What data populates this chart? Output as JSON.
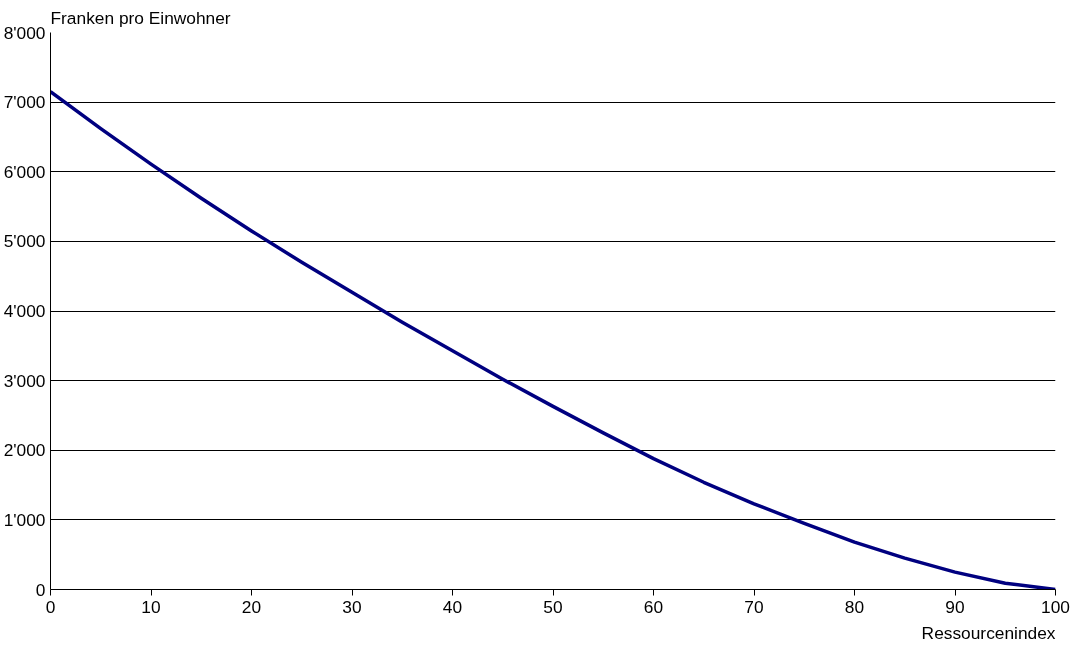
{
  "chart_data": {
    "type": "line",
    "xlabel": "Ressourcenindex",
    "ylabel": "Franken pro Einwohner",
    "x": [
      0,
      5,
      10,
      15,
      20,
      25,
      30,
      35,
      40,
      45,
      50,
      55,
      60,
      65,
      70,
      75,
      80,
      85,
      90,
      95,
      100
    ],
    "series": [
      {
        "color": "#000080",
        "values": [
          7150,
          6620,
          6110,
          5620,
          5150,
          4700,
          4270,
          3840,
          3430,
          3020,
          2630,
          2250,
          1880,
          1540,
          1230,
          950,
          680,
          450,
          250,
          90,
          0
        ]
      }
    ],
    "xlim": [
      0,
      100
    ],
    "xticks": [
      0,
      10,
      20,
      30,
      40,
      50,
      60,
      70,
      80,
      90,
      100
    ],
    "ylim": [
      0,
      8000
    ],
    "yticks": [
      0,
      {
        "value": 1000,
        "label": "1'000"
      },
      {
        "value": 2000,
        "label": "2'000"
      },
      {
        "value": 3000,
        "label": "3'000"
      },
      {
        "value": 4000,
        "label": "4'000"
      },
      {
        "value": 5000,
        "label": "5'000"
      },
      {
        "value": 6000,
        "label": "6'000"
      },
      {
        "value": 7000,
        "label": "7'000"
      },
      {
        "value": 8000,
        "label": "8'000"
      }
    ],
    "grid": "y",
    "marker": "none",
    "line_style": "solid"
  }
}
